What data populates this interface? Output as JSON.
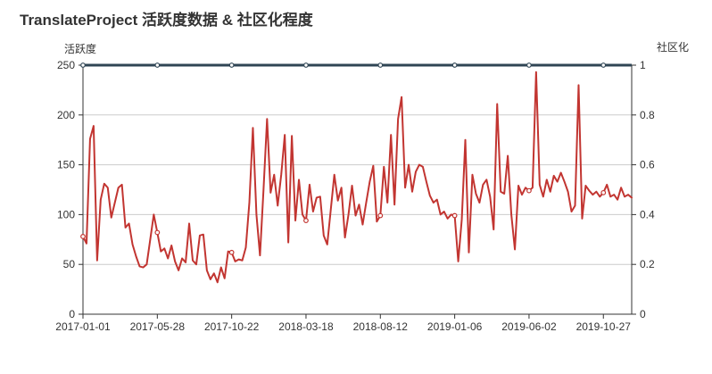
{
  "title": "TranslateProject 活跃度数据 & 社区化程度",
  "chart_data": {
    "type": "line",
    "title": "TranslateProject 活跃度数据 & 社区化程度",
    "grid": true,
    "legend": "none",
    "x_axis": {
      "start_date": "2017-01-01",
      "interval": "weekly",
      "num_points": 156,
      "tick_labels": [
        "2017-01-01",
        "2017-05-28",
        "2017-10-22",
        "2018-03-18",
        "2018-08-12",
        "2019-01-06",
        "2019-06-02",
        "2019-10-27"
      ],
      "tick_indices": [
        0,
        21,
        42,
        63,
        84,
        105,
        126,
        147
      ]
    },
    "left_axis": {
      "name": "活跃度",
      "ticks": [
        0,
        50,
        100,
        150,
        200,
        250
      ],
      "min": 0,
      "max": 250
    },
    "right_axis": {
      "name": "社区化",
      "ticks": [
        0,
        0.2,
        0.4,
        0.6,
        0.8,
        1
      ],
      "min": 0,
      "max": 1
    },
    "marker_indices": [
      0,
      21,
      42,
      63,
      84,
      105,
      126,
      147
    ],
    "series": [
      {
        "name": "活跃度数据",
        "axis": "left",
        "color": "#c23531",
        "line_width": 2,
        "values": [
          78,
          71,
          176,
          189,
          54,
          115,
          131,
          127,
          97,
          112,
          127,
          130,
          87,
          91,
          70,
          58,
          48,
          47,
          50,
          75,
          100,
          82,
          63,
          66,
          56,
          69,
          53,
          44,
          56,
          52,
          91,
          54,
          50,
          79,
          80,
          44,
          35,
          41,
          32,
          47,
          36,
          63,
          62,
          53,
          55,
          54,
          67,
          112,
          187,
          100,
          59,
          125,
          196,
          122,
          140,
          109,
          140,
          180,
          72,
          179,
          94,
          135,
          100,
          94,
          130,
          103,
          117,
          118,
          79,
          70,
          105,
          140,
          114,
          127,
          77,
          100,
          129,
          99,
          110,
          90,
          112,
          133,
          149,
          93,
          99,
          148,
          112,
          180,
          110,
          196,
          218,
          127,
          150,
          123,
          143,
          150,
          148,
          133,
          119,
          112,
          115,
          100,
          103,
          96,
          100,
          99,
          53,
          95,
          175,
          62,
          140,
          121,
          112,
          130,
          135,
          118,
          85,
          211,
          123,
          121,
          159,
          100,
          65,
          129,
          120,
          127,
          124,
          127,
          243,
          130,
          118,
          135,
          123,
          139,
          133,
          142,
          133,
          123,
          103,
          109,
          230,
          96,
          129,
          124,
          120,
          123,
          118,
          122,
          130,
          118,
          120,
          115,
          127,
          118,
          120,
          117
        ]
      },
      {
        "name": "社区化程度",
        "axis": "right",
        "color": "#2f4554",
        "line_width": 3,
        "constant_value": 1
      }
    ],
    "colors": {
      "grid_line": "#cccccc",
      "axis_line": "#333333",
      "label": "#333333",
      "marker_fill": "#ffffff",
      "background": "#ffffff"
    }
  }
}
